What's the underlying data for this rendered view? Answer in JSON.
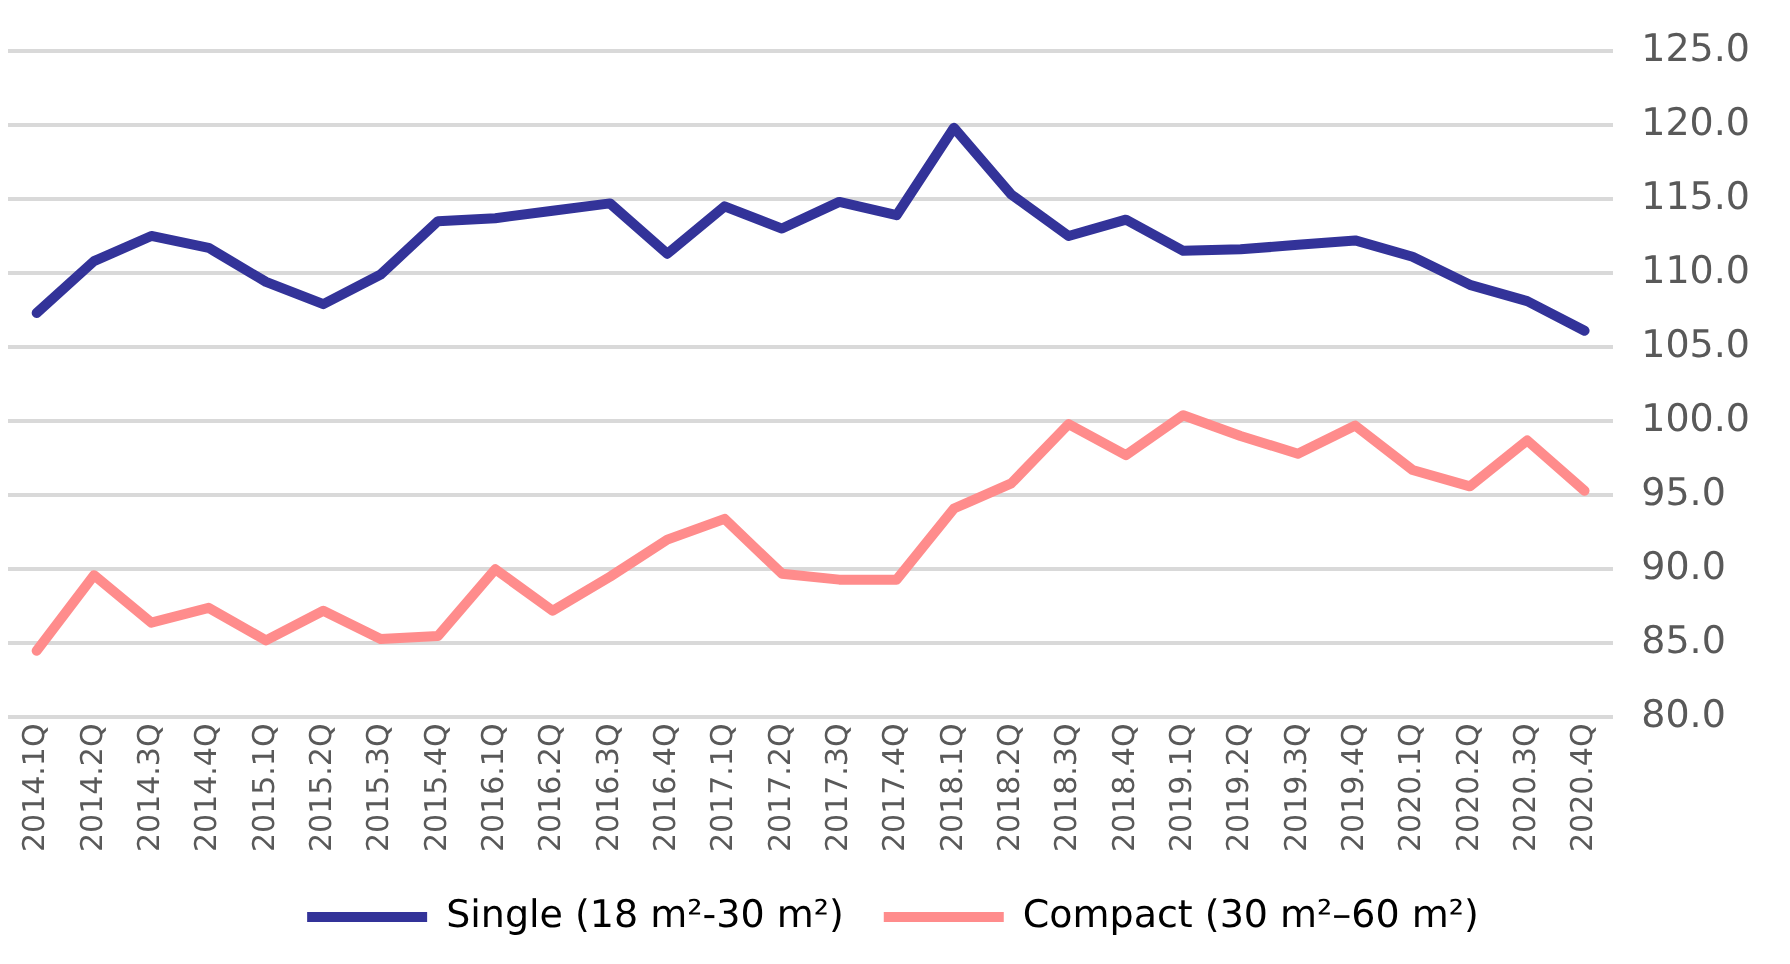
{
  "chart_data": {
    "type": "line",
    "categories": [
      "2014.1Q",
      "2014.2Q",
      "2014.3Q",
      "2014.4Q",
      "2015.1Q",
      "2015.2Q",
      "2015.3Q",
      "2015.4Q",
      "2016.1Q",
      "2016.2Q",
      "2016.3Q",
      "2016.4Q",
      "2017.1Q",
      "2017.2Q",
      "2017.3Q",
      "2017.4Q",
      "2018.1Q",
      "2018.2Q",
      "2018.3Q",
      "2018.4Q",
      "2019.1Q",
      "2019.2Q",
      "2019.3Q",
      "2019.4Q",
      "2020.1Q",
      "2020.2Q",
      "2020.3Q",
      "2020.4Q"
    ],
    "series": [
      {
        "name": "Single (18 m²-30 m²)",
        "color": "#333399",
        "values": [
          107.3,
          110.8,
          112.5,
          111.7,
          109.4,
          107.9,
          109.9,
          113.5,
          113.7,
          114.2,
          114.7,
          111.3,
          114.5,
          113.0,
          114.8,
          113.9,
          119.8,
          115.3,
          112.5,
          113.6,
          111.5,
          111.6,
          111.9,
          112.2,
          111.1,
          109.2,
          108.1,
          106.1
        ]
      },
      {
        "name": "Compact (30 m²–60 m²)",
        "color": "#ff8c8c",
        "values": [
          84.5,
          89.6,
          86.4,
          87.4,
          85.2,
          87.2,
          85.3,
          85.5,
          90.0,
          87.2,
          89.5,
          92.0,
          93.4,
          89.7,
          89.3,
          89.3,
          94.1,
          95.8,
          99.8,
          97.7,
          100.4,
          99.0,
          97.8,
          99.7,
          96.7,
          95.6,
          98.7,
          95.3
        ]
      }
    ],
    "ylim": [
      80,
      125
    ],
    "yticks": [
      {
        "value": 80,
        "label": "80.0"
      },
      {
        "value": 85,
        "label": "85.0"
      },
      {
        "value": 90,
        "label": "90.0"
      },
      {
        "value": 95,
        "label": "95.0"
      },
      {
        "value": 100,
        "label": "100.0"
      },
      {
        "value": 105,
        "label": "105.0"
      },
      {
        "value": 110,
        "label": "110.0"
      },
      {
        "value": 115,
        "label": "115.0"
      },
      {
        "value": 120,
        "label": "120.0"
      },
      {
        "value": 125,
        "label": "125.0"
      }
    ],
    "grid": "y",
    "legend": "bottom",
    "marker": "none",
    "line_style": "solid"
  }
}
